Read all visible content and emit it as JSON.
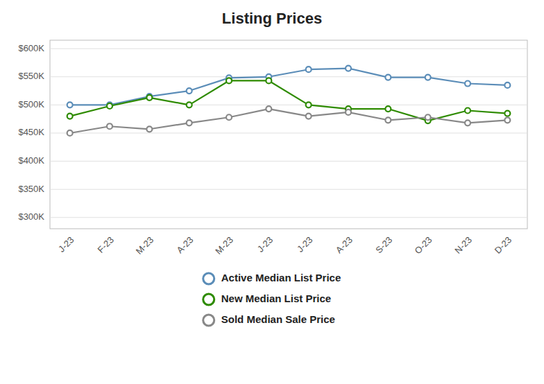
{
  "chart_data": {
    "type": "line",
    "title": "Listing Prices",
    "categories": [
      "J-23",
      "F-23",
      "M-23",
      "A-23",
      "M-23",
      "J-23",
      "J-23",
      "A-23",
      "S-23",
      "O-23",
      "N-23",
      "D-23"
    ],
    "series": [
      {
        "name": "Active Median List Price",
        "color": "#5b8db8",
        "values": [
          500000,
          500000,
          515000,
          525000,
          548000,
          550000,
          563000,
          565000,
          549000,
          549000,
          538000,
          535000
        ]
      },
      {
        "name": "New Median List Price",
        "color": "#2e8b00",
        "values": [
          480000,
          498000,
          513000,
          500000,
          543000,
          543000,
          500000,
          493000,
          493000,
          472000,
          490000,
          485000
        ]
      },
      {
        "name": "Sold Median Sale Price",
        "color": "#888888",
        "values": [
          450000,
          462000,
          457000,
          468000,
          478000,
          493000,
          480000,
          487000,
          473000,
          478000,
          468000,
          473000
        ]
      }
    ],
    "ylim": [
      280000,
      615000
    ],
    "yticks": [
      {
        "value": 300000,
        "label": "$300K"
      },
      {
        "value": 350000,
        "label": "$350K"
      },
      {
        "value": 400000,
        "label": "$400K"
      },
      {
        "value": 450000,
        "label": "$450K"
      },
      {
        "value": 500000,
        "label": "$500K"
      },
      {
        "value": 550000,
        "label": "$550K"
      },
      {
        "value": 600000,
        "label": "$600K"
      }
    ],
    "grid": true,
    "legend": "bottom",
    "marker": "circle",
    "line_style": "solid"
  }
}
